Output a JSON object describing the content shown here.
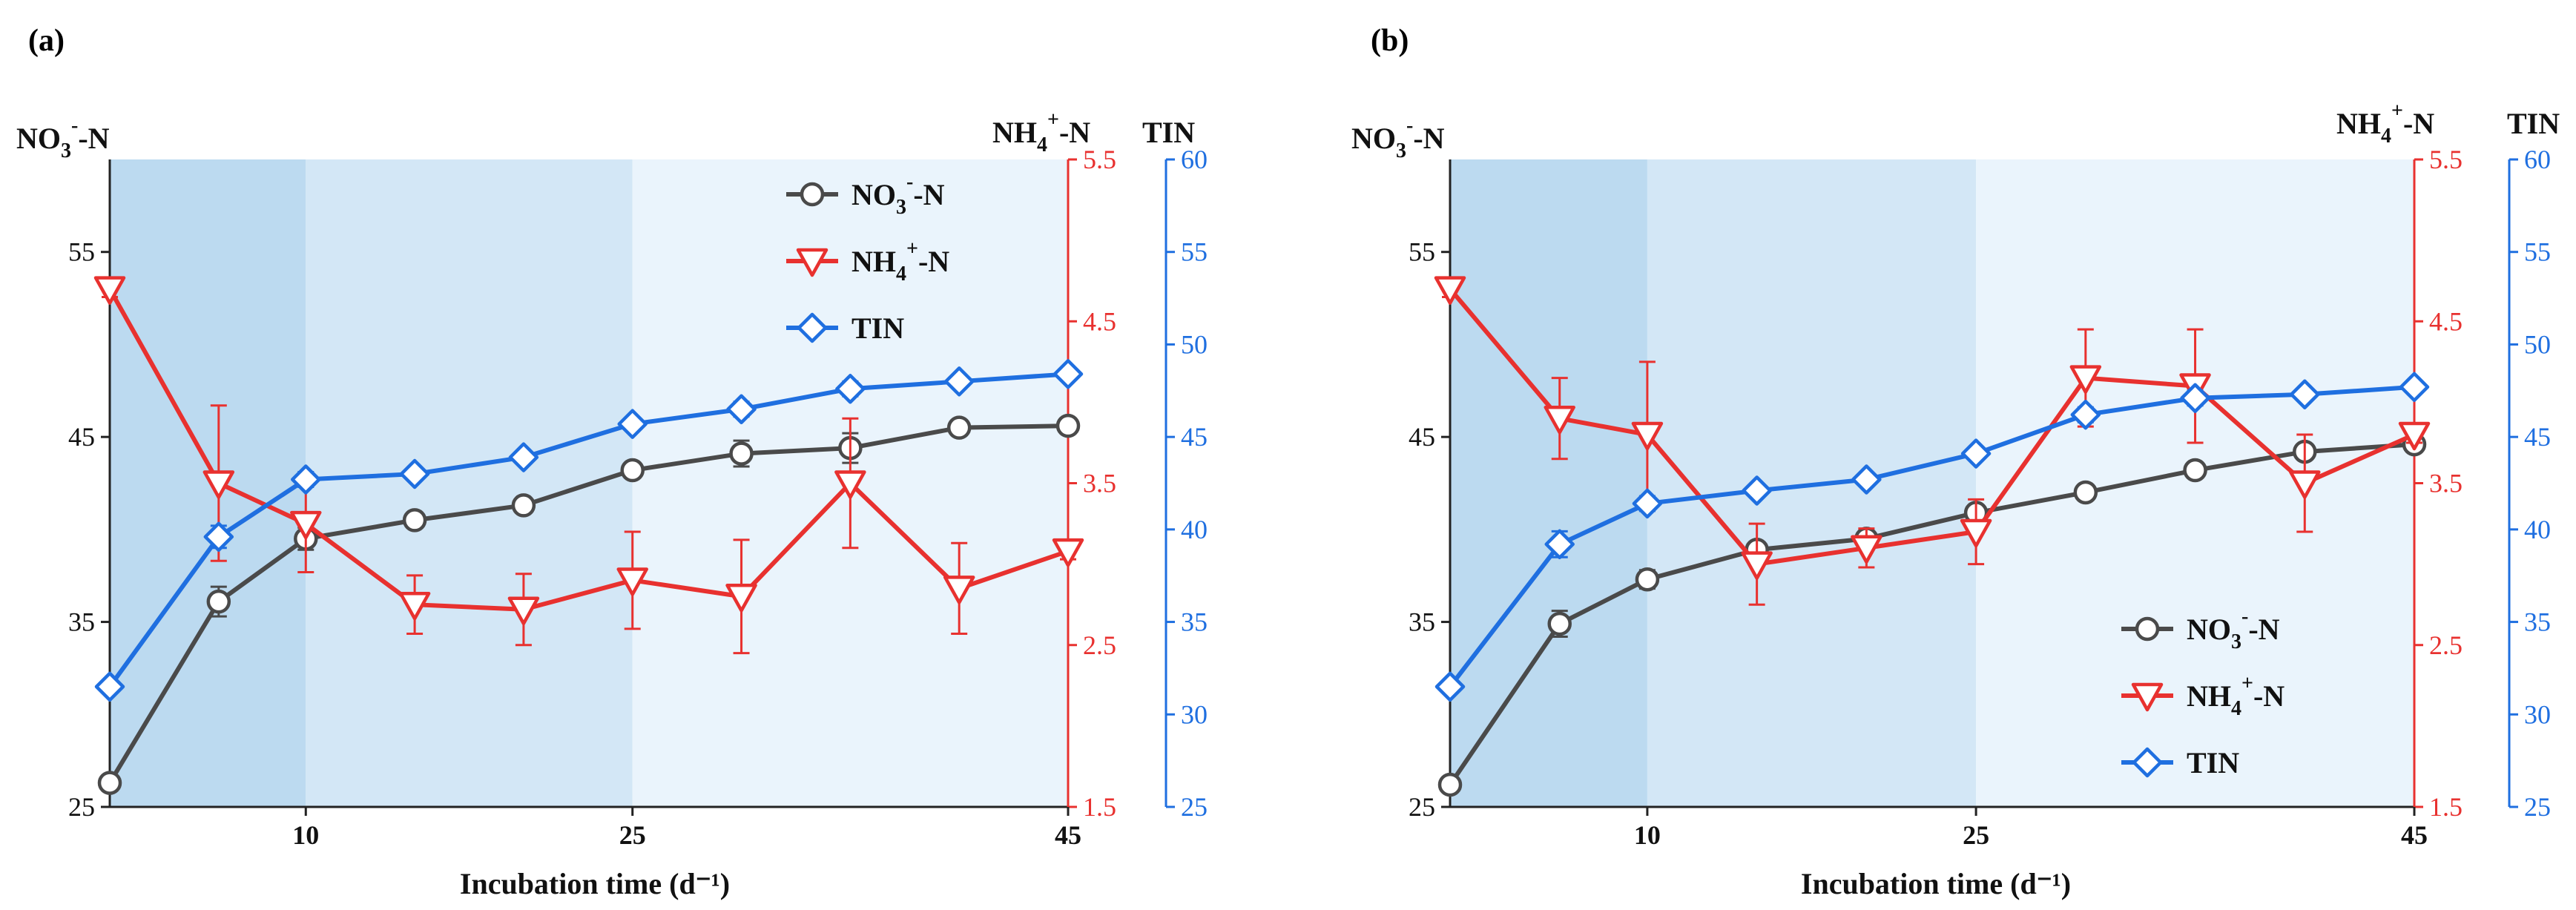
{
  "chart_data": [
    {
      "type": "line",
      "panel_label": "(a)",
      "xlabel": "Incubation time (d⁻¹)",
      "x": [
        1,
        6,
        10,
        15,
        20,
        25,
        30,
        35,
        40,
        45
      ],
      "xticks": [
        "10",
        "25",
        "45"
      ],
      "xtick_values": [
        10,
        25,
        45
      ],
      "left_axis": {
        "title_main": "NO",
        "title_sub": "3",
        "title_sup": "-",
        "title_tail": "-N",
        "ylim": [
          25,
          60
        ],
        "ticks": [
          "25",
          "35",
          "45",
          "55"
        ],
        "color": "#222222"
      },
      "right_axis_1": {
        "title_main": "NH",
        "title_sub": "4",
        "title_sup": "+",
        "title_tail": "-N",
        "ylim": [
          1.5,
          5.5
        ],
        "ticks": [
          "1.5",
          "2.5",
          "3.5",
          "4.5",
          "5.5"
        ],
        "color": "#e8312f"
      },
      "right_axis_2": {
        "title": "TIN",
        "ylim": [
          25,
          60
        ],
        "ticks": [
          "25",
          "30",
          "35",
          "40",
          "45",
          "50",
          "55",
          "60"
        ],
        "color": "#1f6fe0"
      },
      "phase_colors": [
        "#bcdaf0",
        "#d3e7f6",
        "#eaf4fc"
      ],
      "series": [
        {
          "name": "NO3--N",
          "label_main": "NO",
          "label_sub": "3",
          "label_sup": "-",
          "label_tail": "-N",
          "axis": "left",
          "color": "#4a4a4a",
          "marker": "circle",
          "values": [
            26.3,
            36.1,
            39.5,
            40.5,
            41.3,
            43.2,
            44.1,
            44.4,
            45.5,
            45.6
          ],
          "errors": [
            0.2,
            0.8,
            0.6,
            0.4,
            0.4,
            0.4,
            0.7,
            0.8,
            0.4,
            0.3
          ]
        },
        {
          "name": "NH4+-N",
          "label_main": "NH",
          "label_sub": "4",
          "label_sup": "+",
          "label_tail": "-N",
          "axis": "right1",
          "color": "#e8312f",
          "marker": "triangle-down",
          "values": [
            4.7,
            3.5,
            3.25,
            2.75,
            2.72,
            2.9,
            2.8,
            3.5,
            2.85,
            3.08
          ],
          "errors": [
            0.05,
            0.48,
            0.3,
            0.18,
            0.22,
            0.3,
            0.35,
            0.4,
            0.28,
            0.05
          ]
        },
        {
          "name": "TIN",
          "label_main": "TIN",
          "axis": "right2",
          "color": "#1f6fe0",
          "marker": "diamond",
          "values": [
            31.5,
            39.6,
            42.7,
            43.0,
            43.9,
            45.7,
            46.5,
            47.6,
            48.0,
            48.4
          ],
          "errors": [
            0.2,
            0.6,
            0.4,
            0.3,
            0.3,
            0.3,
            0.4,
            0.4,
            0.3,
            0.3
          ]
        }
      ],
      "legend": "top-right"
    },
    {
      "type": "line",
      "panel_label": "(b)",
      "xlabel": "Incubation time (d⁻¹)",
      "x": [
        1,
        6,
        10,
        15,
        20,
        25,
        30,
        35,
        40,
        45
      ],
      "xticks": [
        "10",
        "25",
        "45"
      ],
      "xtick_values": [
        10,
        25,
        45
      ],
      "left_axis": {
        "title_main": "NO",
        "title_sub": "3",
        "title_sup": "-",
        "title_tail": "-N",
        "ylim": [
          25,
          60
        ],
        "ticks": [
          "25",
          "35",
          "45",
          "55"
        ],
        "color": "#222222"
      },
      "right_axis_1": {
        "title_main": "NH",
        "title_sub": "4",
        "title_sup": "+",
        "title_tail": "-N",
        "ylim": [
          1.5,
          5.5
        ],
        "ticks": [
          "1.5",
          "2.5",
          "3.5",
          "4.5",
          "5.5"
        ],
        "color": "#e8312f"
      },
      "right_axis_2": {
        "title": "TIN",
        "ylim": [
          25,
          60
        ],
        "ticks": [
          "25",
          "30",
          "35",
          "40",
          "45",
          "50",
          "55",
          "60"
        ],
        "color": "#1f6fe0"
      },
      "phase_colors": [
        "#bcdaf0",
        "#d3e7f6",
        "#eaf4fc"
      ],
      "series": [
        {
          "name": "NO3--N",
          "label_main": "NO",
          "label_sub": "3",
          "label_sup": "-",
          "label_tail": "-N",
          "axis": "left",
          "color": "#4a4a4a",
          "marker": "circle",
          "values": [
            26.2,
            34.9,
            37.3,
            38.9,
            39.5,
            40.9,
            42.0,
            43.2,
            44.2,
            44.6
          ],
          "errors": [
            0.2,
            0.7,
            0.5,
            0.4,
            0.4,
            0.4,
            0.3,
            0.3,
            0.3,
            0.3
          ]
        },
        {
          "name": "NH4+-N",
          "label_main": "NH",
          "label_sub": "4",
          "label_sup": "+",
          "label_tail": "-N",
          "axis": "right1",
          "color": "#e8312f",
          "marker": "triangle-down",
          "values": [
            4.7,
            3.9,
            3.8,
            3.0,
            3.1,
            3.2,
            4.15,
            4.1,
            3.5,
            3.8
          ],
          "errors": [
            0.05,
            0.25,
            0.45,
            0.25,
            0.12,
            0.2,
            0.3,
            0.35,
            0.3,
            0.05
          ]
        },
        {
          "name": "TIN",
          "label_main": "TIN",
          "axis": "right2",
          "color": "#1f6fe0",
          "marker": "diamond",
          "values": [
            31.5,
            39.2,
            41.4,
            42.1,
            42.7,
            44.1,
            46.2,
            47.1,
            47.3,
            47.7
          ],
          "errors": [
            0.2,
            0.7,
            0.4,
            0.3,
            0.3,
            0.3,
            0.4,
            0.4,
            0.3,
            0.3
          ]
        }
      ],
      "legend": "bottom-right"
    }
  ]
}
